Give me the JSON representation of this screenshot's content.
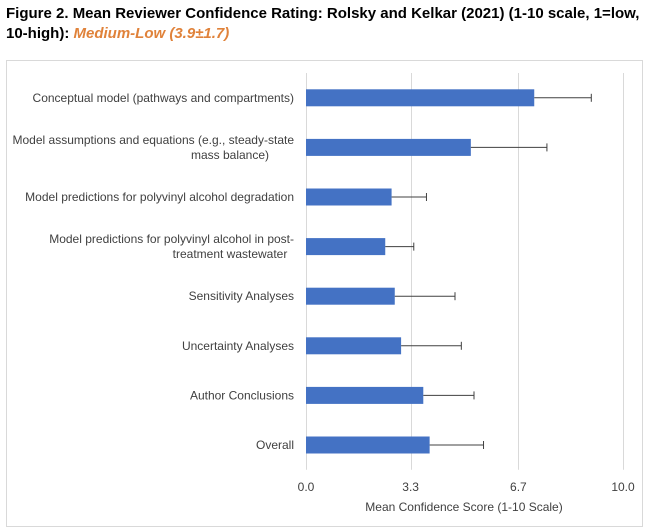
{
  "title": {
    "figure_label": "Figure 2.",
    "main": "Mean Reviewer Confidence Rating: Rolsky and Kelkar (2021) (1-10 scale, 1=low, 10-high):",
    "rating": "Medium-Low (3.9±1.7)"
  },
  "colors": {
    "bar": "#4472C4",
    "error_bar": "#404040",
    "grid": "#D9D9D9",
    "rating": "#E0823A"
  },
  "chart_data": {
    "type": "bar",
    "orientation": "horizontal",
    "categories": [
      [
        "Conceptual model (pathways and compartments)"
      ],
      [
        "Model assumptions and equations (e.g., steady-state",
        "mass balance)"
      ],
      [
        "Model predictions for polyvinyl alcohol degradation"
      ],
      [
        "Model predictions for polyvinyl alcohol in post-",
        "treatment wastewater"
      ],
      [
        "Sensitivity Analyses"
      ],
      [
        "Uncertainty Analyses"
      ],
      [
        "Author Conclusions"
      ],
      [
        "Overall"
      ]
    ],
    "values": [
      7.2,
      5.2,
      2.7,
      2.5,
      2.8,
      3.0,
      3.7,
      3.9
    ],
    "errors": [
      1.8,
      2.4,
      1.1,
      0.9,
      1.9,
      1.9,
      1.6,
      1.7
    ],
    "xlabel": "Mean Confidence Score (1-10 Scale)",
    "xlim": [
      0,
      10
    ],
    "xticks": [
      0,
      3.3,
      6.7,
      10
    ],
    "xtick_labels": [
      "0.0",
      "3.3",
      "6.7",
      "10.0"
    ],
    "grid": true
  }
}
